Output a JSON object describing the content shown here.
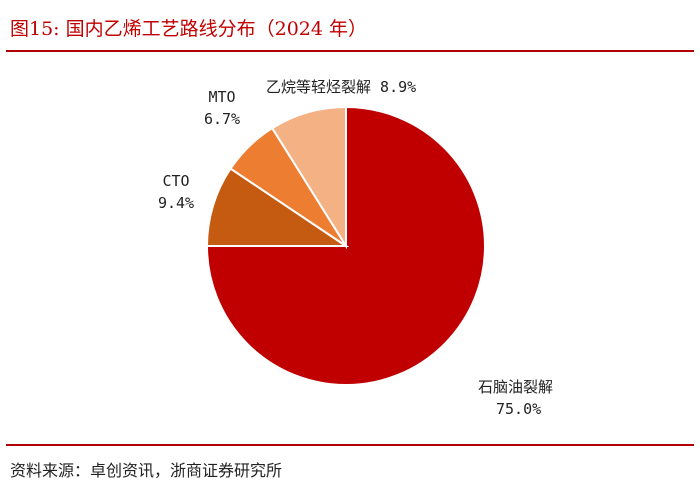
{
  "figure": {
    "title": "图15:   国内乙烯工艺路线分布（2024 年）",
    "source": "资料来源：卓创资讯，浙商证券研究所"
  },
  "chart_data": {
    "type": "pie",
    "slices": [
      {
        "label": "石脑油裂解",
        "value": 75.0,
        "value_text": "75.0%",
        "color": "#c00000"
      },
      {
        "label": "CTO",
        "value": 9.4,
        "value_text": "9.4%",
        "color": "#c55a11"
      },
      {
        "label": "MTO",
        "value": 6.7,
        "value_text": "6.7%",
        "color": "#ed7d31"
      },
      {
        "label": "乙烷等轻烃裂解",
        "value": 8.9,
        "value_text": "8.9%",
        "color": "#f4b183"
      }
    ]
  }
}
